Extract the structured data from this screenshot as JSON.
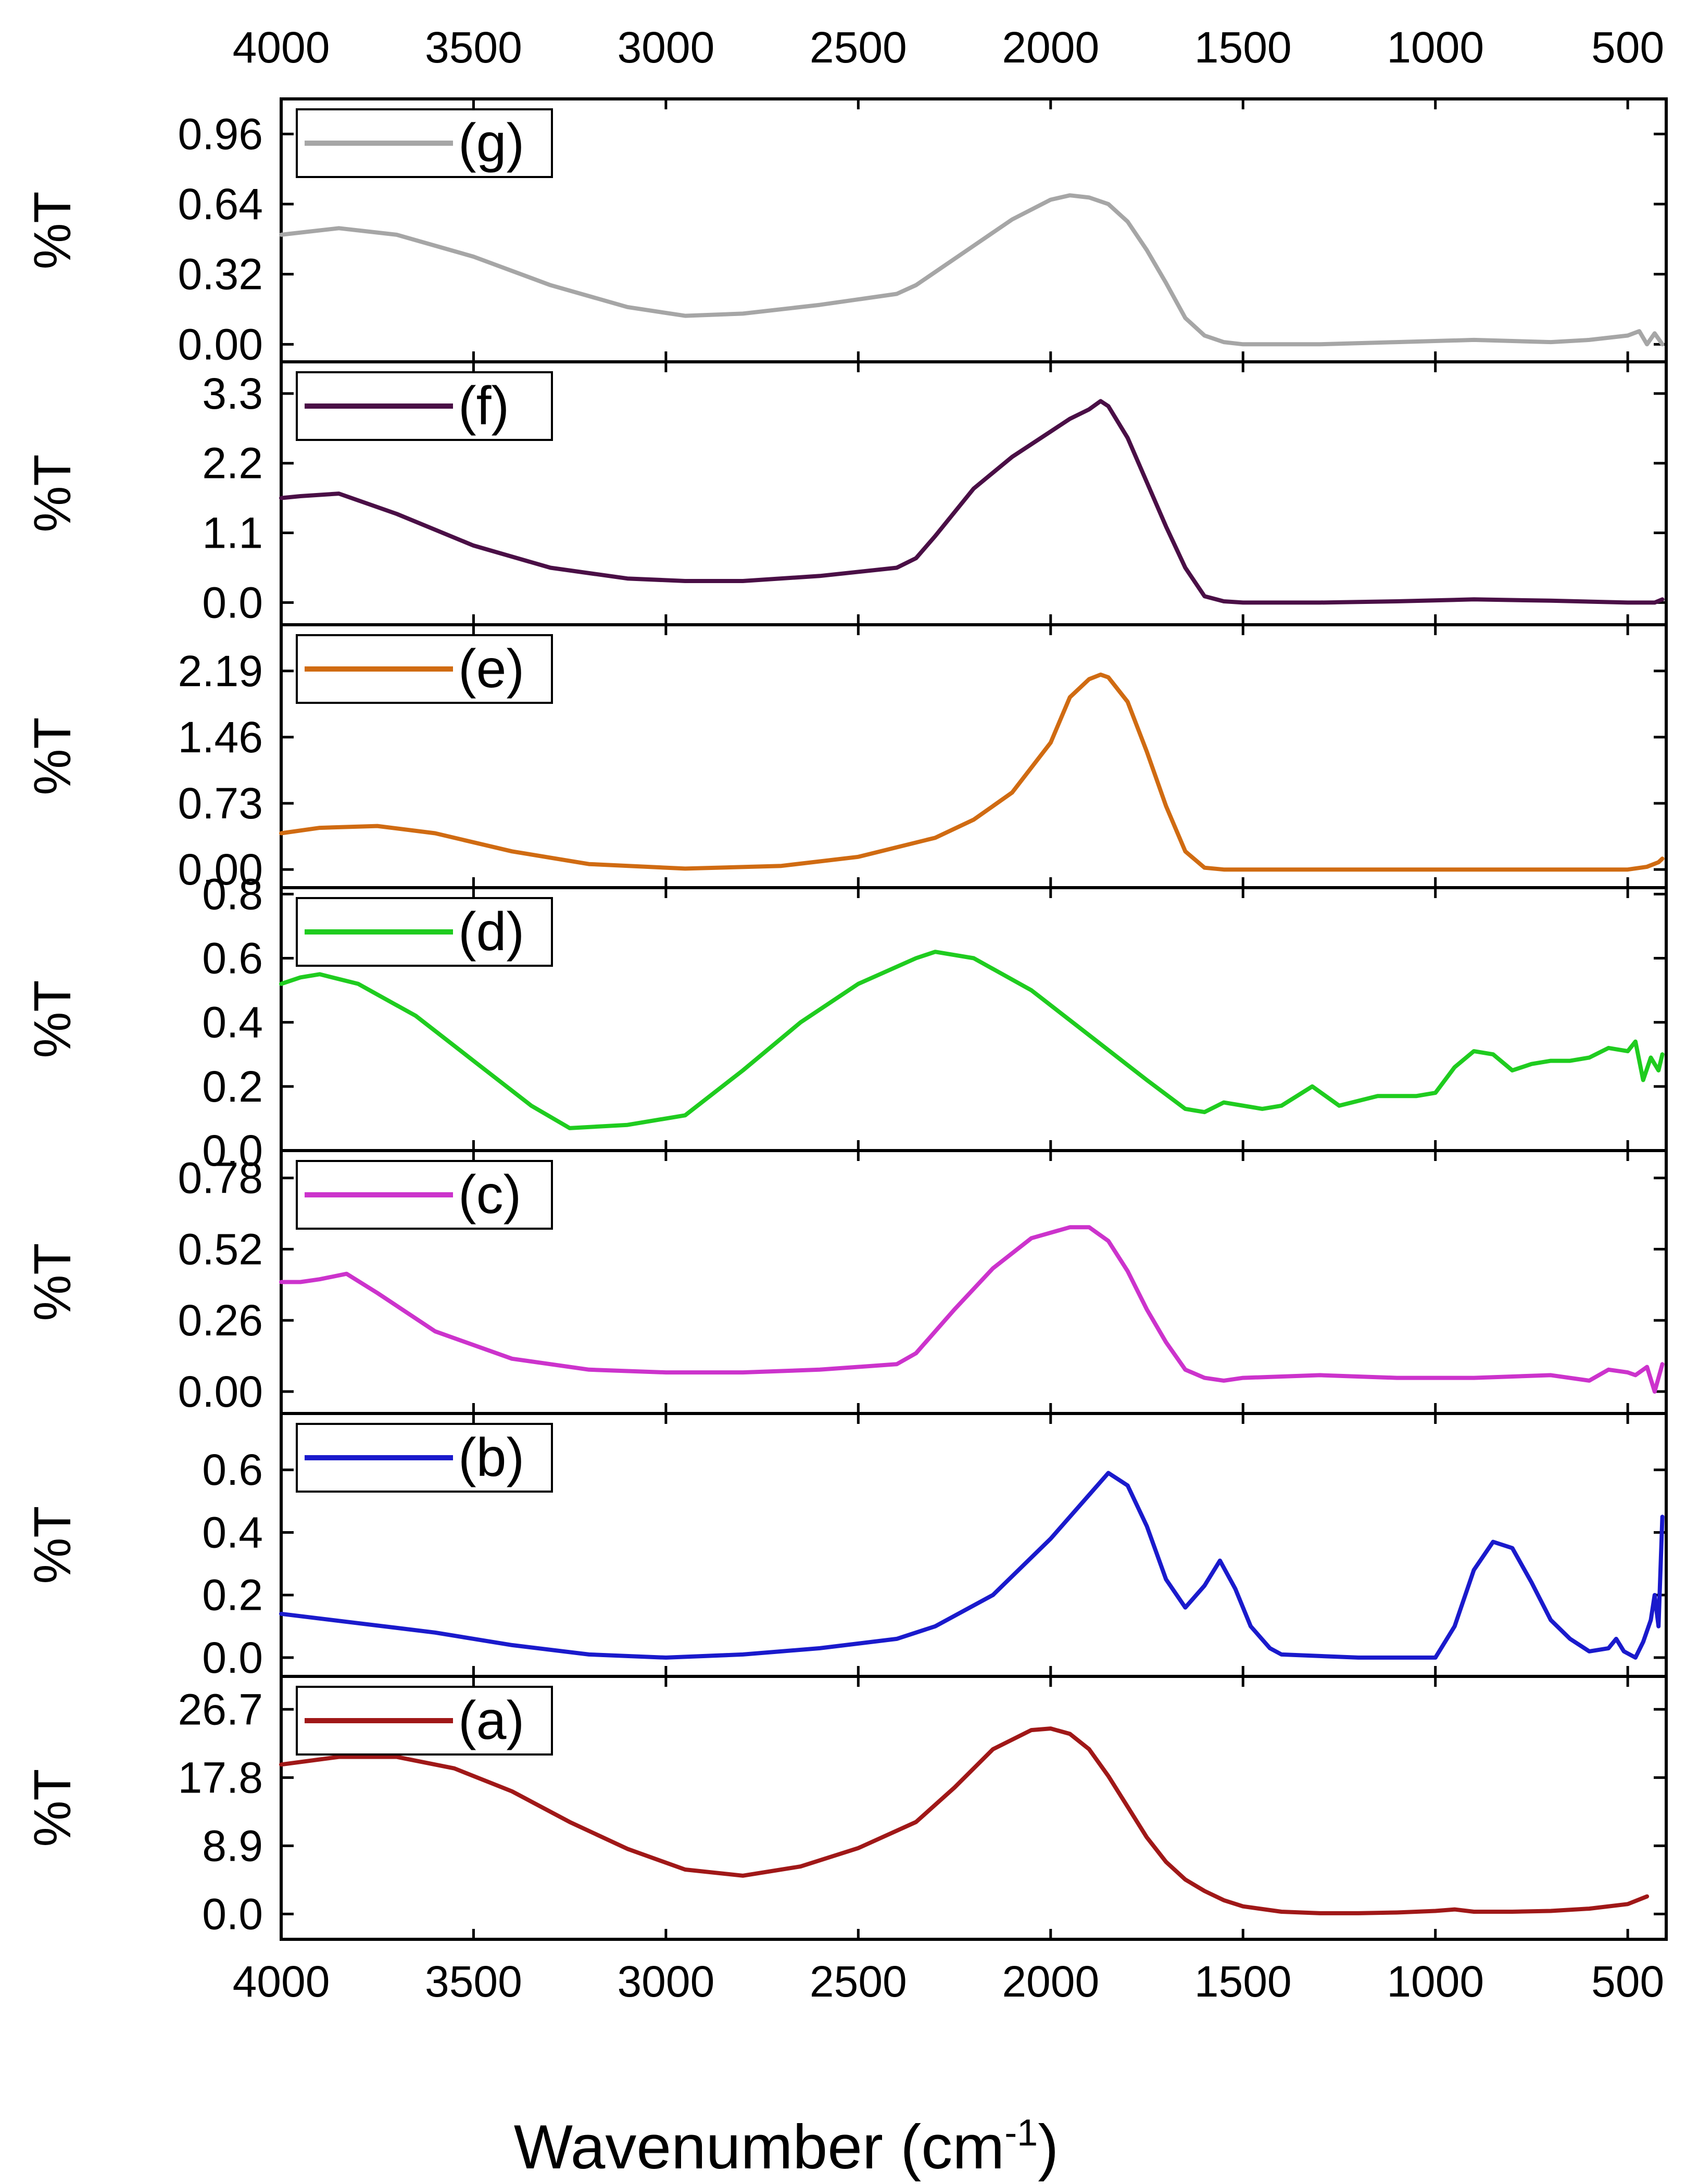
{
  "chart_data": {
    "type": "line",
    "x_title_main": "Wavenumber (cm",
    "x_title_sup": "-1",
    "x_title_close": ")",
    "xlim": [
      4000,
      400
    ],
    "x_ticks": [
      4000,
      3500,
      3000,
      2500,
      2000,
      1500,
      1000,
      500
    ],
    "x_tick_labels": [
      "4000",
      "3500",
      "3000",
      "2500",
      "2000",
      "1500",
      "1000",
      "500"
    ],
    "panels": [
      {
        "id": "g",
        "legend": "(g)",
        "color": "#a6a6a6",
        "ylabel": "%T",
        "ylim": [
          -0.08,
          1.12
        ],
        "y_ticks": [
          0.0,
          0.32,
          0.64,
          0.96
        ],
        "y_tick_labels": [
          "0.00",
          "0.32",
          "0.64",
          "0.96"
        ],
        "x": [
          4000,
          3850,
          3700,
          3500,
          3300,
          3100,
          2950,
          2800,
          2600,
          2400,
          2350,
          2200,
          2100,
          2000,
          1950,
          1900,
          1850,
          1800,
          1750,
          1700,
          1650,
          1600,
          1550,
          1500,
          1300,
          1100,
          900,
          700,
          600,
          500,
          470,
          450,
          430,
          410
        ],
        "y": [
          0.5,
          0.53,
          0.5,
          0.4,
          0.27,
          0.17,
          0.13,
          0.14,
          0.18,
          0.23,
          0.27,
          0.45,
          0.57,
          0.66,
          0.68,
          0.67,
          0.64,
          0.56,
          0.43,
          0.28,
          0.12,
          0.04,
          0.01,
          0.0,
          0.0,
          0.01,
          0.02,
          0.01,
          0.02,
          0.04,
          0.06,
          0.0,
          0.05,
          0.0
        ]
      },
      {
        "id": "f",
        "legend": "(f)",
        "color": "#4a0f46",
        "ylabel": "%T",
        "ylim": [
          -0.35,
          3.8
        ],
        "y_ticks": [
          0.0,
          1.1,
          2.2,
          3.3
        ],
        "y_tick_labels": [
          "0.0",
          "1.1",
          "2.2",
          "3.3"
        ],
        "x": [
          4000,
          3950,
          3850,
          3700,
          3500,
          3300,
          3100,
          2950,
          2800,
          2600,
          2400,
          2350,
          2300,
          2200,
          2100,
          2000,
          1950,
          1900,
          1870,
          1850,
          1800,
          1750,
          1700,
          1650,
          1600,
          1550,
          1500,
          1300,
          1100,
          900,
          700,
          500,
          430,
          410
        ],
        "y": [
          1.65,
          1.68,
          1.72,
          1.4,
          0.9,
          0.55,
          0.38,
          0.34,
          0.34,
          0.42,
          0.55,
          0.7,
          1.05,
          1.8,
          2.3,
          2.7,
          2.9,
          3.05,
          3.18,
          3.1,
          2.6,
          1.9,
          1.2,
          0.55,
          0.1,
          0.02,
          0.0,
          0.0,
          0.02,
          0.05,
          0.03,
          0.0,
          0.0,
          0.05
        ]
      },
      {
        "id": "e",
        "legend": "(e)",
        "color": "#d06b12",
        "ylabel": "%T",
        "ylim": [
          -0.2,
          2.7
        ],
        "y_ticks": [
          0.0,
          0.73,
          1.46,
          2.19
        ],
        "y_tick_labels": [
          "0.00",
          "0.73",
          "1.46",
          "2.19"
        ],
        "x": [
          4000,
          3900,
          3750,
          3600,
          3400,
          3200,
          2950,
          2700,
          2500,
          2300,
          2200,
          2100,
          2000,
          1950,
          1900,
          1870,
          1850,
          1800,
          1750,
          1700,
          1650,
          1600,
          1550,
          1300,
          1000,
          700,
          500,
          450,
          420,
          410
        ],
        "y": [
          0.4,
          0.46,
          0.48,
          0.4,
          0.2,
          0.06,
          0.01,
          0.04,
          0.14,
          0.35,
          0.55,
          0.85,
          1.4,
          1.9,
          2.1,
          2.15,
          2.12,
          1.85,
          1.3,
          0.7,
          0.2,
          0.02,
          0.0,
          0.0,
          0.0,
          0.0,
          0.0,
          0.03,
          0.08,
          0.12
        ]
      },
      {
        "id": "d",
        "legend": "(d)",
        "color": "#1fcc1f",
        "ylabel": "%T",
        "ylim": [
          0.0,
          0.82
        ],
        "y_ticks": [
          0.0,
          0.2,
          0.4,
          0.6,
          0.8
        ],
        "y_tick_labels": [
          "0.0",
          "0.2",
          "0.4",
          "0.6",
          "0.8"
        ],
        "x": [
          4000,
          3950,
          3900,
          3800,
          3650,
          3500,
          3350,
          3250,
          3100,
          2950,
          2800,
          2650,
          2500,
          2350,
          2300,
          2200,
          2050,
          1900,
          1750,
          1650,
          1600,
          1550,
          1450,
          1400,
          1320,
          1250,
          1150,
          1050,
          1000,
          950,
          900,
          850,
          800,
          750,
          700,
          650,
          600,
          550,
          500,
          480,
          460,
          440,
          420,
          410
        ],
        "y": [
          0.52,
          0.54,
          0.55,
          0.52,
          0.42,
          0.28,
          0.14,
          0.07,
          0.08,
          0.11,
          0.25,
          0.4,
          0.52,
          0.6,
          0.62,
          0.6,
          0.5,
          0.36,
          0.22,
          0.13,
          0.12,
          0.15,
          0.13,
          0.14,
          0.2,
          0.14,
          0.17,
          0.17,
          0.18,
          0.26,
          0.31,
          0.3,
          0.25,
          0.27,
          0.28,
          0.28,
          0.29,
          0.32,
          0.31,
          0.34,
          0.22,
          0.29,
          0.25,
          0.3
        ]
      },
      {
        "id": "c",
        "legend": "(c)",
        "color": "#cc33cc",
        "ylabel": "%T",
        "ylim": [
          -0.08,
          0.88
        ],
        "y_ticks": [
          0.0,
          0.26,
          0.52,
          0.78
        ],
        "y_tick_labels": [
          "0.00",
          "0.26",
          "0.52",
          "0.78"
        ],
        "x": [
          4000,
          3950,
          3900,
          3830,
          3750,
          3600,
          3400,
          3200,
          3000,
          2800,
          2600,
          2400,
          2350,
          2250,
          2150,
          2050,
          1950,
          1900,
          1850,
          1800,
          1750,
          1700,
          1650,
          1600,
          1550,
          1500,
          1300,
          1100,
          900,
          700,
          600,
          550,
          500,
          480,
          450,
          430,
          420,
          410
        ],
        "y": [
          0.4,
          0.4,
          0.41,
          0.43,
          0.36,
          0.22,
          0.12,
          0.08,
          0.07,
          0.07,
          0.08,
          0.1,
          0.14,
          0.3,
          0.45,
          0.56,
          0.6,
          0.6,
          0.55,
          0.44,
          0.3,
          0.18,
          0.08,
          0.05,
          0.04,
          0.05,
          0.06,
          0.05,
          0.05,
          0.06,
          0.04,
          0.08,
          0.07,
          0.06,
          0.09,
          0.0,
          0.05,
          0.1
        ]
      },
      {
        "id": "b",
        "legend": "(b)",
        "color": "#1a1acc",
        "ylabel": "%T",
        "ylim": [
          -0.06,
          0.78
        ],
        "y_ticks": [
          0.0,
          0.2,
          0.4,
          0.6
        ],
        "y_tick_labels": [
          "0.0",
          "0.2",
          "0.4",
          "0.6"
        ],
        "x": [
          4000,
          3800,
          3600,
          3400,
          3200,
          3000,
          2800,
          2600,
          2400,
          2300,
          2150,
          2000,
          1900,
          1850,
          1800,
          1750,
          1700,
          1650,
          1600,
          1560,
          1520,
          1480,
          1430,
          1400,
          1200,
          1000,
          950,
          900,
          850,
          800,
          750,
          700,
          650,
          600,
          550,
          530,
          510,
          480,
          460,
          440,
          430,
          420,
          410
        ],
        "y": [
          0.14,
          0.11,
          0.08,
          0.04,
          0.01,
          0.0,
          0.01,
          0.03,
          0.06,
          0.1,
          0.2,
          0.38,
          0.52,
          0.59,
          0.55,
          0.42,
          0.25,
          0.16,
          0.23,
          0.31,
          0.22,
          0.1,
          0.03,
          0.01,
          0.0,
          0.0,
          0.1,
          0.28,
          0.37,
          0.35,
          0.24,
          0.12,
          0.06,
          0.02,
          0.03,
          0.06,
          0.02,
          0.0,
          0.05,
          0.12,
          0.2,
          0.1,
          0.45
        ]
      },
      {
        "id": "a",
        "legend": "(a)",
        "color": "#a01818",
        "ylabel": "%T",
        "ylim": [
          -3.3,
          31.0
        ],
        "y_ticks": [
          0.0,
          8.9,
          17.8,
          26.7
        ],
        "y_tick_labels": [
          "0.0",
          "8.9",
          "17.8",
          "26.7"
        ],
        "x": [
          4000,
          3850,
          3700,
          3550,
          3400,
          3250,
          3100,
          2950,
          2800,
          2650,
          2500,
          2350,
          2250,
          2150,
          2050,
          2000,
          1950,
          1900,
          1850,
          1800,
          1750,
          1700,
          1650,
          1600,
          1550,
          1500,
          1400,
          1300,
          1200,
          1100,
          1000,
          950,
          900,
          800,
          700,
          600,
          500,
          450
        ],
        "y": [
          19.5,
          20.5,
          20.5,
          19.0,
          16.0,
          12.0,
          8.5,
          5.8,
          5.0,
          6.2,
          8.6,
          12.0,
          16.5,
          21.5,
          24.0,
          24.2,
          23.5,
          21.5,
          18.0,
          14.0,
          10.0,
          6.8,
          4.5,
          3.0,
          1.8,
          1.0,
          0.3,
          0.1,
          0.1,
          0.2,
          0.4,
          0.6,
          0.3,
          0.3,
          0.4,
          0.7,
          1.3,
          2.3
        ]
      }
    ]
  }
}
